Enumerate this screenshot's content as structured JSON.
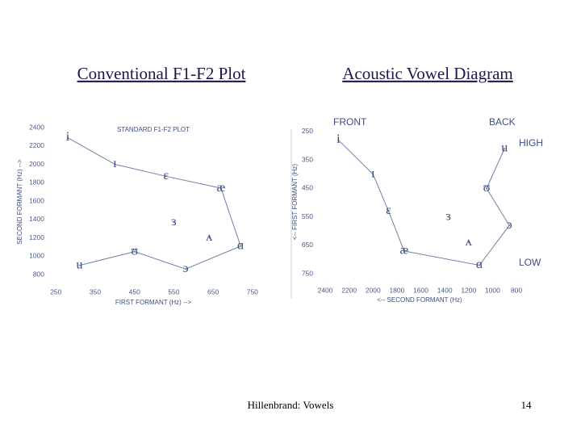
{
  "headings": [
    "Conventional F1-F2 Plot",
    "Acoustic Vowel Diagram"
  ],
  "footer": "Hillenbrand: Vowels",
  "page_number": "14",
  "chart_data": [
    {
      "type": "line",
      "title": "STANDARD F1-F2 PLOT",
      "xlabel": "FIRST FORMANT (Hz) -->",
      "ylabel": "SECOND FORMANT (Hz) -->",
      "xlim": [
        235,
        775
      ],
      "ylim": [
        695,
        2488
      ],
      "xticks": [
        250,
        350,
        450,
        550,
        650,
        750
      ],
      "yticks": [
        800,
        1000,
        1200,
        1400,
        1600,
        1800,
        2000,
        2200,
        2400
      ],
      "series": [
        {
          "color": "#6f7fa6",
          "point_labels": [
            "i",
            "ɪ",
            "ɛ",
            "æ",
            "ɑ",
            "ɔ",
            "ʊ",
            "u"
          ],
          "x": [
            280,
            400,
            530,
            670,
            720,
            580,
            450,
            310
          ],
          "values": [
            2290,
            2000,
            1870,
            1740,
            1110,
            860,
            1050,
            900
          ]
        },
        {
          "color": "none",
          "point_labels": [
            "ɜ",
            "ʌ"
          ],
          "x": [
            550,
            640
          ],
          "values": [
            1370,
            1200
          ]
        }
      ]
    },
    {
      "type": "line",
      "xlabel": "<-- SECOND FORMANT (Hz)",
      "ylabel": "<-- FIRST FORMANT (Hz)",
      "xlim": [
        2488,
        699
      ],
      "ylim": [
        781,
        222
      ],
      "xticks": [
        2400,
        2200,
        2000,
        1800,
        1600,
        1400,
        1200,
        1000,
        800
      ],
      "yticks": [
        250,
        350,
        450,
        550,
        650,
        750
      ],
      "annotations": [
        "FRONT",
        "BACK",
        "HIGH",
        "LOW"
      ],
      "series": [
        {
          "color": "#6f7fa6",
          "point_labels": [
            "i",
            "ɪ",
            "ɛ",
            "æ",
            "ɑ",
            "ɔ",
            "ʊ",
            "u"
          ],
          "x": [
            2290,
            2000,
            1870,
            1740,
            1110,
            860,
            1050,
            900
          ],
          "values": [
            280,
            400,
            530,
            670,
            720,
            580,
            450,
            310
          ]
        },
        {
          "color": "none",
          "point_labels": [
            "ɜ",
            "ʌ"
          ],
          "x": [
            1370,
            1200
          ],
          "values": [
            550,
            640
          ]
        }
      ]
    }
  ]
}
